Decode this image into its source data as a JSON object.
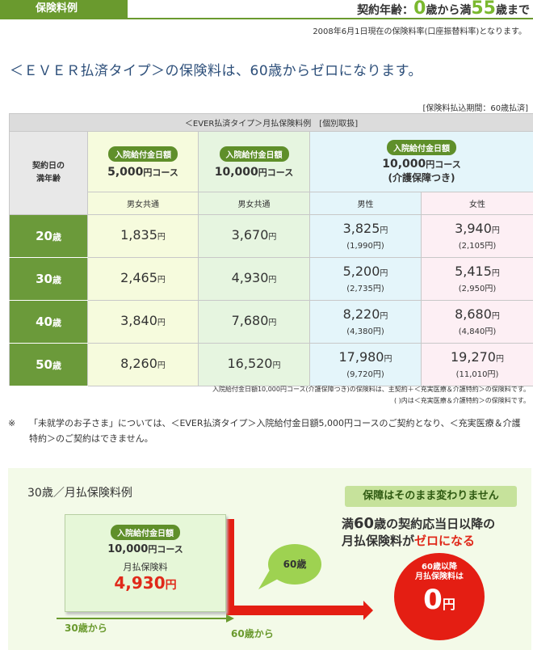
{
  "header": {
    "tab_label": "保険料例",
    "contract_age_prefix": "契約年齢：",
    "contract_age_min": "0",
    "contract_age_mid": "歳から満",
    "contract_age_max": "55",
    "contract_age_suffix": "歳まで",
    "as_of": "2008年6月1日現在の保険料率(口座振替料率)となります。"
  },
  "headline": "＜ＥＶＥＲ払済タイプ＞の保険料は、60歳からゼロになります。",
  "payment_period": "[保険料払込期間：60歳払済]",
  "table": {
    "caption": "＜EVER払済タイプ＞月払保険料例　[個別取扱]",
    "age_header_line1": "契約日の",
    "age_header_line2": "満年齢",
    "pill_label": "入院給付金日額",
    "plans": [
      {
        "amount": "5,000",
        "unit": "円コース"
      },
      {
        "amount": "10,000",
        "unit": "円コース"
      },
      {
        "amount": "10,000",
        "unit": "円コース",
        "note": "(介護保障つき)"
      }
    ],
    "sub_headers": [
      "男女共通",
      "男女共通",
      "男性",
      "女性"
    ],
    "age_unit": "歳",
    "yen": "円",
    "rows": [
      {
        "age": "20",
        "c1": "1,835",
        "c2": "3,670",
        "c3": "3,825",
        "c3_sub": "(1,990",
        "c4": "3,940",
        "c4_sub": "(2,105"
      },
      {
        "age": "30",
        "c1": "2,465",
        "c2": "4,930",
        "c3": "5,200",
        "c3_sub": "(2,735",
        "c4": "5,415",
        "c4_sub": "(2,950"
      },
      {
        "age": "40",
        "c1": "3,840",
        "c2": "7,680",
        "c3": "8,220",
        "c3_sub": "(4,380",
        "c4": "8,680",
        "c4_sub": "(4,840"
      },
      {
        "age": "50",
        "c1": "8,260",
        "c2": "16,520",
        "c3": "17,980",
        "c3_sub": "(9,720",
        "c4": "19,270",
        "c4_sub": "(11,010"
      }
    ],
    "paren_close": ")"
  },
  "footnotes": [
    "入院給付金日額10,000円コース(介護保障つき)の保険料は、主契約＋＜充実医療＆介護特約＞の保険料です。",
    "( )内は＜充実医療＆介護特約＞の保険料です。"
  ],
  "note": {
    "mark": "※",
    "text": "「未就学のお子さま」については、＜EVER払済タイプ＞入院給付金日額5,000円コースのご契約となり、＜充実医療＆介護特約＞のご契約はできません。"
  },
  "example": {
    "title": "30歳／月払保険料例",
    "keep_badge": "保障はそのまま変わりません",
    "msg_line1_pre": "満",
    "msg_line1_num": "60",
    "msg_line1_post": "歳の契約応当日以降の",
    "msg_line2_pre": "月払保険料が",
    "msg_line2_red": "ゼロになる",
    "card_pill": "入院給付金日額",
    "card_amount": "10,000",
    "card_unit": "円コース",
    "card_label": "月払保険料",
    "card_premium": "4,930",
    "card_yen": "円",
    "bubble": "60歳",
    "circle_line1": "60歳以降",
    "circle_line2": "月払保険料は",
    "circle_zero": "0",
    "circle_yen": "円",
    "from30": "30歳から",
    "from60": "60歳から"
  },
  "colors": {
    "brand_green": "#6a9a2e",
    "accent_red": "#e41e13",
    "headline_blue": "#2d4f7a"
  }
}
